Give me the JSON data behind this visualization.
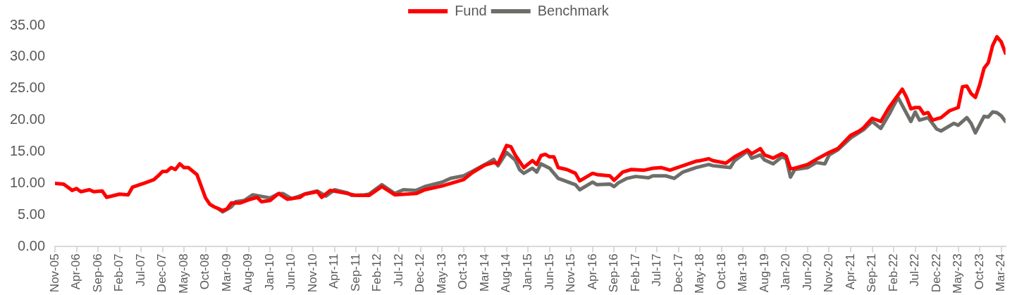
{
  "chart_data": {
    "type": "line",
    "legend": "top",
    "grid": false,
    "marker": "none",
    "line_style": "solid",
    "xlim": [
      "2005-11",
      "2024-04"
    ],
    "xticks": [
      {
        "value": "2005-11",
        "label": "Nov-05"
      },
      {
        "value": "2006-04",
        "label": "Apr-06"
      },
      {
        "value": "2006-09",
        "label": "Sep-06"
      },
      {
        "value": "2007-02",
        "label": "Feb-07"
      },
      {
        "value": "2007-07",
        "label": "Jul-07"
      },
      {
        "value": "2007-12",
        "label": "Dec-07"
      },
      {
        "value": "2008-05",
        "label": "May-08"
      },
      {
        "value": "2008-10",
        "label": "Oct-08"
      },
      {
        "value": "2009-03",
        "label": "Mar-09"
      },
      {
        "value": "2009-08",
        "label": "Aug-09"
      },
      {
        "value": "2010-01",
        "label": "Jan-10"
      },
      {
        "value": "2010-06",
        "label": "Jun-10"
      },
      {
        "value": "2010-11",
        "label": "Nov-10"
      },
      {
        "value": "2011-04",
        "label": "Apr-11"
      },
      {
        "value": "2011-09",
        "label": "Sep-11"
      },
      {
        "value": "2012-02",
        "label": "Feb-12"
      },
      {
        "value": "2012-07",
        "label": "Jul-12"
      },
      {
        "value": "2012-12",
        "label": "Dec-12"
      },
      {
        "value": "2013-05",
        "label": "May-13"
      },
      {
        "value": "2013-10",
        "label": "Oct-13"
      },
      {
        "value": "2014-03",
        "label": "Mar-14"
      },
      {
        "value": "2014-08",
        "label": "Aug-14"
      },
      {
        "value": "2015-01",
        "label": "Jan-15"
      },
      {
        "value": "2015-06",
        "label": "Jun-15"
      },
      {
        "value": "2015-11",
        "label": "Nov-15"
      },
      {
        "value": "2016-04",
        "label": "Apr-16"
      },
      {
        "value": "2016-09",
        "label": "Sep-16"
      },
      {
        "value": "2017-02",
        "label": "Feb-17"
      },
      {
        "value": "2017-07",
        "label": "Jul-17"
      },
      {
        "value": "2017-12",
        "label": "Dec-17"
      },
      {
        "value": "2018-05",
        "label": "May-18"
      },
      {
        "value": "2018-10",
        "label": "Oct-18"
      },
      {
        "value": "2019-03",
        "label": "Mar-19"
      },
      {
        "value": "2019-08",
        "label": "Aug-19"
      },
      {
        "value": "2020-01",
        "label": "Jan-20"
      },
      {
        "value": "2020-06",
        "label": "Jun-20"
      },
      {
        "value": "2020-11",
        "label": "Nov-20"
      },
      {
        "value": "2021-04",
        "label": "Apr-21"
      },
      {
        "value": "2021-09",
        "label": "Sep-21"
      },
      {
        "value": "2022-02",
        "label": "Feb-22"
      },
      {
        "value": "2022-07",
        "label": "Jul-22"
      },
      {
        "value": "2022-12",
        "label": "Dec-22"
      },
      {
        "value": "2023-05",
        "label": "May-23"
      },
      {
        "value": "2023-10",
        "label": "Oct-23"
      },
      {
        "value": "2024-03",
        "label": "Mar-24"
      }
    ],
    "ylim": [
      0,
      35
    ],
    "yticks": [
      {
        "value": 0,
        "label": "0.00"
      },
      {
        "value": 5,
        "label": "5.00"
      },
      {
        "value": 10,
        "label": "10.00"
      },
      {
        "value": 15,
        "label": "15.00"
      },
      {
        "value": 20,
        "label": "20.00"
      },
      {
        "value": 25,
        "label": "25.00"
      },
      {
        "value": 30,
        "label": "30.00"
      },
      {
        "value": 35,
        "label": "35.00"
      }
    ],
    "series": [
      {
        "name": "Fund",
        "color": "#ff0000",
        "x": [
          "2005-11",
          "2006-01",
          "2006-03",
          "2006-04",
          "2006-05",
          "2006-07",
          "2006-08",
          "2006-10",
          "2006-11",
          "2007-02",
          "2007-04",
          "2007-05",
          "2007-08",
          "2007-10",
          "2007-11",
          "2007-12",
          "2008-01",
          "2008-02",
          "2008-03",
          "2008-04",
          "2008-05",
          "2008-06",
          "2008-08",
          "2008-10",
          "2008-11",
          "2008-12",
          "2009-02",
          "2009-03",
          "2009-04",
          "2009-06",
          "2009-08",
          "2009-10",
          "2009-11",
          "2010-01",
          "2010-03",
          "2010-05",
          "2010-08",
          "2010-09",
          "2010-12",
          "2011-01",
          "2011-03",
          "2011-07",
          "2011-09",
          "2011-12",
          "2012-03",
          "2012-06",
          "2012-11",
          "2013-01",
          "2013-05",
          "2013-10",
          "2013-12",
          "2014-03",
          "2014-05",
          "2014-06",
          "2014-08",
          "2014-09",
          "2014-10",
          "2014-12",
          "2015-02",
          "2015-03",
          "2015-04",
          "2015-05",
          "2015-06",
          "2015-07",
          "2015-08",
          "2015-10",
          "2015-12",
          "2016-01",
          "2016-04",
          "2016-05",
          "2016-08",
          "2016-09",
          "2016-11",
          "2017-01",
          "2017-04",
          "2017-06",
          "2017-08",
          "2017-10",
          "2018-01",
          "2018-04",
          "2018-05",
          "2018-07",
          "2018-08",
          "2018-11",
          "2019-01",
          "2019-04",
          "2019-05",
          "2019-07",
          "2019-08",
          "2019-10",
          "2019-12",
          "2020-01",
          "2020-02",
          "2020-03",
          "2020-06",
          "2020-08",
          "2020-11",
          "2021-01",
          "2021-04",
          "2021-06",
          "2021-07",
          "2021-09",
          "2021-11",
          "2022-01",
          "2022-04",
          "2022-05",
          "2022-06",
          "2022-07",
          "2022-08",
          "2022-09",
          "2022-10",
          "2022-11",
          "2023-01",
          "2023-03",
          "2023-05",
          "2023-06",
          "2023-07",
          "2023-08",
          "2023-09",
          "2023-10",
          "2023-11",
          "2023-12",
          "2024-01",
          "2024-02",
          "2024-03",
          "2024-04"
        ],
        "values": [
          10.0,
          9.9,
          8.9,
          9.2,
          8.7,
          9.0,
          8.7,
          8.8,
          7.8,
          8.3,
          8.2,
          9.4,
          10.1,
          10.6,
          11.2,
          11.9,
          11.9,
          12.5,
          12.2,
          13.1,
          12.5,
          12.5,
          11.4,
          7.7,
          6.7,
          6.3,
          5.7,
          6.0,
          6.9,
          6.9,
          7.4,
          7.8,
          7.1,
          7.3,
          8.4,
          7.5,
          7.8,
          8.3,
          8.7,
          7.8,
          8.9,
          8.4,
          8.1,
          8.1,
          9.5,
          8.2,
          8.4,
          9.0,
          9.6,
          10.6,
          11.7,
          12.9,
          13.3,
          13.1,
          16.0,
          15.8,
          14.5,
          12.5,
          13.6,
          13.0,
          14.4,
          14.6,
          14.2,
          14.2,
          12.5,
          12.2,
          11.6,
          10.4,
          11.6,
          11.4,
          11.2,
          10.5,
          11.8,
          12.2,
          12.1,
          12.4,
          12.5,
          12.1,
          12.8,
          13.5,
          13.6,
          13.9,
          13.6,
          13.2,
          14.2,
          15.3,
          14.7,
          15.5,
          14.5,
          14.0,
          14.7,
          14.3,
          12.3,
          12.4,
          13.0,
          13.8,
          14.9,
          15.5,
          17.6,
          18.3,
          18.8,
          20.3,
          19.8,
          22.1,
          24.9,
          23.6,
          21.8,
          22.0,
          22.0,
          21.0,
          21.2,
          20.0,
          20.4,
          21.5,
          22.0,
          25.3,
          25.4,
          24.2,
          23.6,
          25.6,
          28.2,
          29.1,
          31.8,
          33.2,
          32.4,
          30.6
        ]
      },
      {
        "name": "Benchmark",
        "color": "#6d6e69",
        "x": [
          "2009-01",
          "2009-02",
          "2009-04",
          "2009-05",
          "2009-07",
          "2009-09",
          "2010-01",
          "2010-03",
          "2010-04",
          "2010-06",
          "2010-07",
          "2010-09",
          "2010-12",
          "2011-02",
          "2011-04",
          "2011-07",
          "2011-08",
          "2011-11",
          "2011-12",
          "2012-03",
          "2012-06",
          "2012-08",
          "2012-11",
          "2013-01",
          "2013-05",
          "2013-07",
          "2013-10",
          "2013-12",
          "2014-03",
          "2014-05",
          "2014-06",
          "2014-08",
          "2014-10",
          "2014-11",
          "2014-12",
          "2015-02",
          "2015-03",
          "2015-04",
          "2015-06",
          "2015-08",
          "2015-12",
          "2016-01",
          "2016-04",
          "2016-05",
          "2016-08",
          "2016-09",
          "2016-10",
          "2016-12",
          "2017-02",
          "2017-05",
          "2017-06",
          "2017-09",
          "2017-11",
          "2018-01",
          "2018-04",
          "2018-07",
          "2018-08",
          "2018-12",
          "2019-01",
          "2019-04",
          "2019-05",
          "2019-07",
          "2019-08",
          "2019-10",
          "2019-12",
          "2020-01",
          "2020-02",
          "2020-03",
          "2020-06",
          "2020-08",
          "2020-10",
          "2020-11",
          "2021-01",
          "2021-04",
          "2021-07",
          "2021-09",
          "2021-11",
          "2022-01",
          "2022-03",
          "2022-06",
          "2022-07",
          "2022-08",
          "2022-10",
          "2022-12",
          "2023-01",
          "2023-04",
          "2023-05",
          "2023-07",
          "2023-08",
          "2023-09",
          "2023-11",
          "2023-12",
          "2024-01",
          "2024-02",
          "2024-03",
          "2024-04"
        ],
        "values": [
          6.0,
          5.5,
          6.3,
          7.1,
          7.3,
          8.2,
          7.7,
          8.4,
          8.4,
          7.6,
          7.8,
          8.3,
          8.8,
          8.0,
          9.0,
          8.5,
          8.1,
          8.2,
          8.3,
          9.8,
          8.4,
          9.0,
          8.9,
          9.5,
          10.2,
          10.8,
          11.2,
          11.9,
          13.0,
          13.8,
          12.8,
          14.9,
          13.7,
          12.2,
          11.6,
          12.4,
          11.8,
          13.1,
          12.4,
          10.8,
          9.8,
          9.0,
          10.2,
          9.8,
          9.9,
          9.5,
          10.1,
          10.8,
          11.1,
          10.9,
          11.2,
          11.2,
          10.8,
          11.8,
          12.5,
          13.0,
          12.8,
          12.5,
          13.6,
          15.1,
          14.0,
          14.5,
          13.7,
          13.1,
          14.2,
          13.9,
          11.0,
          12.2,
          12.5,
          13.3,
          13.1,
          14.5,
          15.3,
          17.2,
          18.5,
          19.8,
          18.7,
          21.0,
          23.6,
          19.8,
          21.3,
          20.0,
          20.4,
          18.6,
          18.3,
          19.5,
          19.2,
          20.4,
          19.5,
          18.0,
          20.6,
          20.5,
          21.3,
          21.2,
          20.7,
          19.8
        ]
      }
    ]
  }
}
